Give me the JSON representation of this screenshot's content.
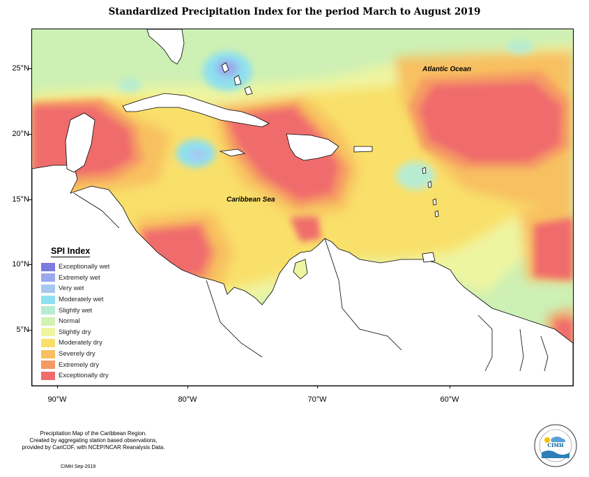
{
  "title": "Standardized Precipitation Index for the period March to August 2019",
  "map": {
    "latitude_labels": [
      "25°N",
      "20°N",
      "15°N",
      "10°N",
      "5°N"
    ],
    "longitude_labels": [
      "90°W",
      "80°W",
      "70°W",
      "60°W"
    ],
    "ocean_labels": {
      "atlantic": "Atlantic Ocean",
      "caribbean": "Caribbean Sea"
    }
  },
  "legend": {
    "title": "SPI Index",
    "items": [
      {
        "label": "Exceptionally wet",
        "color": "#7b7be0"
      },
      {
        "label": "Extremely wet",
        "color": "#9ba8ec"
      },
      {
        "label": "Very wet",
        "color": "#a6c8f0"
      },
      {
        "label": "Moderately wet",
        "color": "#8ee0f0"
      },
      {
        "label": "Slightly wet",
        "color": "#b8ecd2"
      },
      {
        "label": "Normal",
        "color": "#d2f2b4"
      },
      {
        "label": "Slightly dry",
        "color": "#eef5a0"
      },
      {
        "label": "Moderately dry",
        "color": "#f9e06a"
      },
      {
        "label": "Severely dry",
        "color": "#f8c060"
      },
      {
        "label": "Extremely dry",
        "color": "#f59a64"
      },
      {
        "label": "Exceptionally dry",
        "color": "#f06c6c"
      }
    ]
  },
  "footer": {
    "line1": "Precipitation Map of the Caribbean Region.",
    "line2": "Created by aggregating station based observations,",
    "line3": "provided by CariCOF, with NCEP/NCAR Reanalysis Data.",
    "date": "CIMH Sep-2019"
  },
  "logo": {
    "text": "CIMH"
  }
}
